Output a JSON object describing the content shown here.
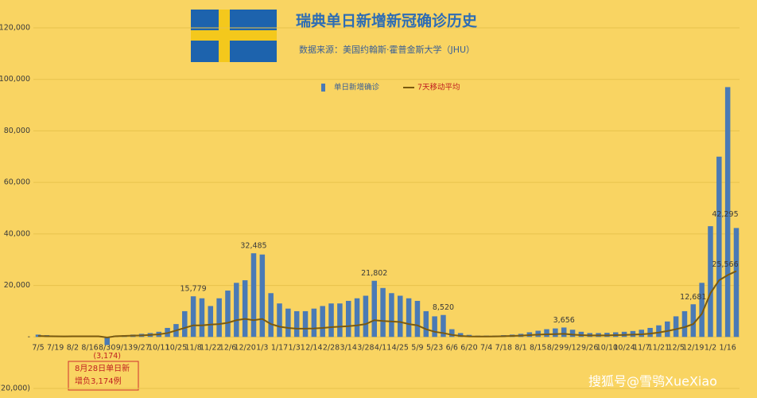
{
  "chart_data": {
    "type": "bar",
    "title": "瑞典单日新增新冠确诊历史",
    "subtitle": "数据来源：美国约翰斯·霍普金斯大学（JHU）",
    "annotation": [
      "8月28日单日新",
      "增负3,174例"
    ],
    "watermark": "搜狐号@雪鸮XueXiao",
    "categories": [
      "7/5",
      null,
      "7/19",
      null,
      "8/2",
      null,
      "8/16",
      null,
      "8/30",
      null,
      "9/13",
      null,
      "9/27",
      null,
      "10/11",
      null,
      "10/25",
      null,
      "11/8",
      null,
      "11/22",
      null,
      "12/6",
      null,
      "12/20",
      null,
      "1/3",
      null,
      "1/17",
      null,
      "1/31",
      null,
      "2/14",
      null,
      "2/28",
      null,
      "3/14",
      null,
      "3/28",
      null,
      "4/11",
      null,
      "4/25",
      null,
      "5/9",
      null,
      "5/23",
      null,
      "6/6",
      null,
      "6/20",
      null,
      "7/4",
      null,
      "7/18",
      null,
      "8/1",
      null,
      "8/15",
      null,
      "8/29",
      null,
      "9/12",
      null,
      "9/26",
      null,
      "10/10",
      null,
      "10/24",
      null,
      "11/7",
      null,
      "11/21",
      null,
      "12/5",
      null,
      "12/19",
      null,
      "1/2",
      null,
      "1/16",
      null
    ],
    "series": [
      {
        "name": "单日新增确诊",
        "color": "#4a7ab5",
        "values": [
          900,
          700,
          500,
          400,
          400,
          500,
          400,
          400,
          -3174,
          500,
          700,
          900,
          1200,
          1500,
          2000,
          3500,
          5000,
          10000,
          15779,
          15000,
          12000,
          15000,
          18000,
          21000,
          22000,
          32485,
          32000,
          17000,
          13000,
          11000,
          10000,
          10000,
          11000,
          12000,
          13000,
          13000,
          14000,
          15000,
          16000,
          21802,
          19000,
          17000,
          16000,
          15000,
          14000,
          10000,
          8000,
          8520,
          3000,
          1500,
          800,
          500,
          500,
          500,
          700,
          900,
          1200,
          1800,
          2400,
          3000,
          3300,
          3656,
          2800,
          2000,
          1500,
          1500,
          1600,
          1800,
          2000,
          2300,
          2800,
          3500,
          4500,
          6000,
          8000,
          10000,
          12681,
          21000,
          43000,
          70000,
          97000,
          42295
        ],
        "value_labels": [
          null,
          null,
          null,
          null,
          null,
          null,
          null,
          null,
          "(3,174)",
          null,
          null,
          null,
          null,
          null,
          null,
          null,
          null,
          null,
          "15,779",
          null,
          null,
          null,
          null,
          null,
          null,
          "32,485",
          null,
          null,
          null,
          null,
          null,
          null,
          null,
          null,
          null,
          null,
          null,
          null,
          null,
          "21,802",
          null,
          null,
          null,
          null,
          null,
          null,
          null,
          "8,520",
          null,
          null,
          null,
          null,
          null,
          null,
          null,
          null,
          null,
          null,
          null,
          null,
          null,
          "3,656",
          null,
          null,
          null,
          null,
          null,
          null,
          null,
          null,
          null,
          null,
          null,
          null,
          null,
          null,
          "12,681",
          null,
          null,
          null,
          null,
          "42,295"
        ]
      },
      {
        "name": "7天移动平均",
        "type": "line",
        "color": "#7a5a10",
        "values": [
          400,
          300,
          250,
          200,
          250,
          250,
          250,
          250,
          -200,
          300,
          400,
          500,
          600,
          800,
          1000,
          1500,
          2500,
          3500,
          4500,
          4500,
          4800,
          5000,
          5500,
          6500,
          7000,
          6500,
          7000,
          5000,
          4000,
          3500,
          3200,
          3200,
          3300,
          3500,
          3800,
          4000,
          4200,
          4500,
          5000,
          6500,
          6200,
          6000,
          5800,
          5000,
          4500,
          3000,
          2000,
          1500,
          800,
          400,
          200,
          150,
          150,
          200,
          300,
          400,
          500,
          700,
          900,
          1000,
          1100,
          1200,
          900,
          700,
          600,
          600,
          600,
          700,
          800,
          900,
          1000,
          1300,
          1700,
          2300,
          3000,
          3800,
          5000,
          9000,
          17000,
          22000,
          24000,
          25566
        ],
        "value_labels": [
          null,
          null,
          null,
          null,
          null,
          null,
          null,
          null,
          null,
          null,
          null,
          null,
          null,
          null,
          null,
          null,
          null,
          null,
          null,
          null,
          null,
          null,
          null,
          null,
          null,
          null,
          null,
          null,
          null,
          null,
          null,
          null,
          null,
          null,
          null,
          null,
          null,
          null,
          null,
          null,
          null,
          null,
          null,
          null,
          null,
          null,
          null,
          null,
          null,
          null,
          null,
          null,
          null,
          null,
          null,
          null,
          null,
          null,
          null,
          null,
          null,
          null,
          null,
          null,
          null,
          null,
          null,
          null,
          null,
          null,
          null,
          null,
          null,
          null,
          null,
          null,
          null,
          null,
          null,
          null,
          null,
          "25,566"
        ]
      }
    ],
    "ylim": [
      -20000,
      120000
    ],
    "yticks": [
      {
        "value": -20000,
        "label": "(20,000)"
      },
      {
        "value": 0,
        "label": "-"
      },
      {
        "value": 20000,
        "label": "20,000"
      },
      {
        "value": 40000,
        "label": "40,000"
      },
      {
        "value": 60000,
        "label": "60,000"
      },
      {
        "value": 80000,
        "label": "80,000"
      },
      {
        "value": 100000,
        "label": "100,000"
      },
      {
        "value": 120000,
        "label": "120,000"
      }
    ],
    "grid": true
  }
}
